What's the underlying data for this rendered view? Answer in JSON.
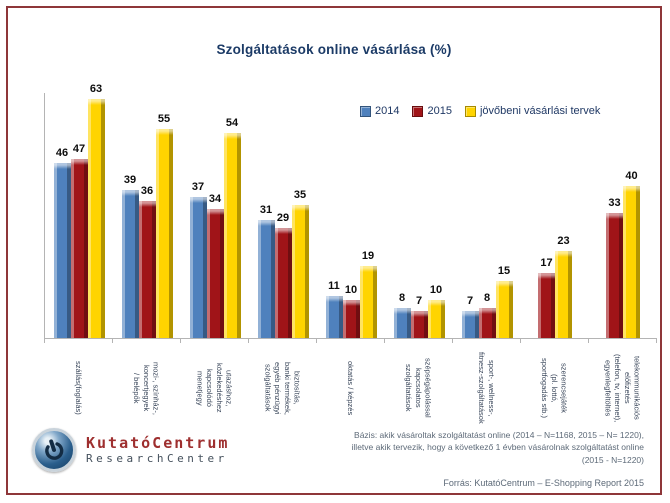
{
  "title": "Szolgáltatások online vásárlása (%)",
  "legend": [
    {
      "label": "2014",
      "color": "#4f81bd"
    },
    {
      "label": "2015",
      "color": "#a01418"
    },
    {
      "label": "jövőbeni vásárlási tervek",
      "color": "#ffd400"
    }
  ],
  "chart_data": {
    "type": "bar",
    "title": "Szolgáltatások online vásárlása (%)",
    "xlabel": "",
    "ylabel": "",
    "ylim": [
      0,
      65
    ],
    "grid": false,
    "legend_position": "top-right",
    "categories": [
      "szállás(foglalás)",
      "mozi-, színház-,\nkoncertjegyek\n/ belépők",
      "utazáshoz,\nközlekedéshez\nkapcsolódó\nmenetjegy",
      "biztosítás,\nbanki termékek,\negyéb pénzügyi\nszolgáltatások",
      "oktatás / képzés",
      "szépségápolással\nkapcsolatos\nszolgáltatások",
      "sport-, wellness-,\nfitnesz-szolgáltatások",
      "szerencsejáték\n(pl. lottó,\nsportfogadás stb.)",
      "telekommunikációs\nelőfizetés\n(telefon, tv, internet),\negyenlegfeltöltés"
    ],
    "series": [
      {
        "name": "2014",
        "color": "#4f81bd",
        "values": [
          46,
          39,
          37,
          31,
          11,
          8,
          7,
          null,
          null
        ]
      },
      {
        "name": "2015",
        "color": "#a01418",
        "values": [
          47,
          36,
          34,
          29,
          10,
          7,
          8,
          17,
          33
        ]
      },
      {
        "name": "jövőbeni vásárlási tervek",
        "color": "#ffd400",
        "values": [
          63,
          55,
          54,
          35,
          19,
          10,
          15,
          23,
          40
        ]
      }
    ]
  },
  "footer": {
    "basis_lines": [
      "Bázis: akik vásároltak szolgáltatást online (2014 – N=1168, 2015 – N= 1220),",
      "illetve akik tervezik, hogy a következő 1 évben vásárolnak szolgáltatást online",
      "(2015 - N=1220)"
    ],
    "source": "Forrás: KutatóCentrum – E-Shopping Report 2015"
  },
  "logo": {
    "line1": "KutatóCentrum",
    "line2": "ResearchCenter"
  },
  "colors": {
    "frame_border": "#8e3639",
    "title_text": "#1b3a66",
    "axis": "#b4b4b4",
    "category_text": "#39465a",
    "footer_text": "#5d6a78"
  }
}
